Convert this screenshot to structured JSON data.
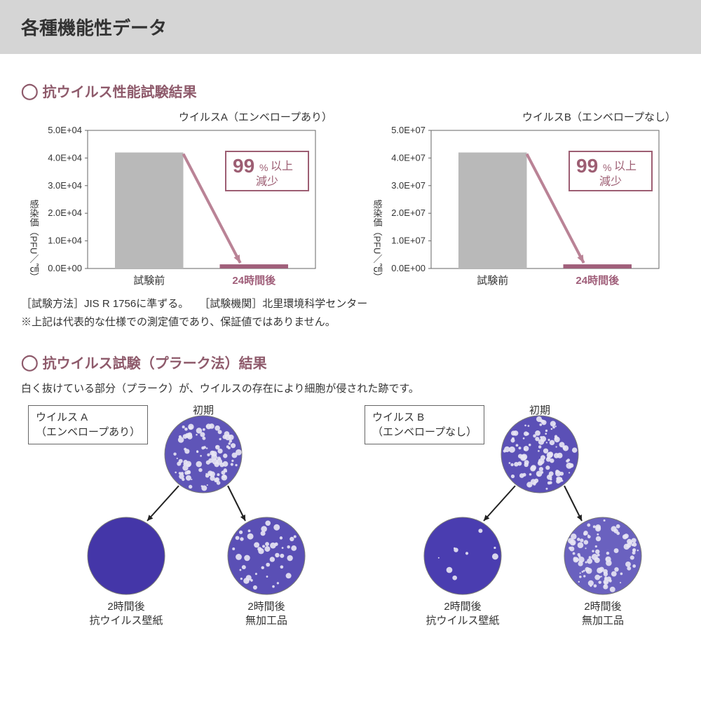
{
  "header": {
    "title": "各種機能性データ"
  },
  "section1": {
    "title": "抗ウイルス性能試験結果",
    "charts": [
      {
        "caption": "ウイルスA（エンベロープあり）",
        "ylabel": "感染価（PFU／㎠）",
        "yticks": [
          "0.0E+00",
          "1.0E+04",
          "2.0E+04",
          "3.0E+04",
          "4.0E+04",
          "5.0E+04"
        ],
        "xlabels": [
          "試験前",
          "24時間後"
        ],
        "bar1_value": 4.2,
        "bar2_value": 0.15,
        "ymax": 5.0,
        "badge_big": "99",
        "badge_pct": "%",
        "badge_rest": "以上",
        "badge_line2": "減少",
        "bar1_color": "#b9b9b9",
        "bar2_color": "#a05f7a",
        "axis_color": "#666666",
        "tick_font": 13,
        "xlabel_font": 15,
        "arrow_color": "#ba8396",
        "badge_border": "#9d5e73",
        "badge_text": "#9d5e73"
      },
      {
        "caption": "ウイルスB（エンベロープなし）",
        "ylabel": "感染価（PFU／㎠）",
        "yticks": [
          "0.0E+00",
          "1.0E+07",
          "2.0E+07",
          "3.0E+07",
          "4.0E+07",
          "5.0E+07"
        ],
        "xlabels": [
          "試験前",
          "24時間後"
        ],
        "bar1_value": 4.2,
        "bar2_value": 0.15,
        "ymax": 5.0,
        "badge_big": "99",
        "badge_pct": "%",
        "badge_rest": "以上",
        "badge_line2": "減少",
        "bar1_color": "#b9b9b9",
        "bar2_color": "#a05f7a",
        "axis_color": "#666666",
        "tick_font": 13,
        "xlabel_font": 15,
        "arrow_color": "#ba8396",
        "badge_border": "#9d5e73",
        "badge_text": "#9d5e73"
      }
    ],
    "notes": [
      "［試験方法］JIS R 1756に準ずる。　　［試験機関］北里環境科学センター",
      "※上記は代表的な仕様での測定値であり、保証値ではありません。"
    ]
  },
  "section2": {
    "title": "抗ウイルス試験（プラーク法）結果",
    "desc": "白く抜けている部分（プラーク）が、ウイルスの存在により細胞が侵された跡です。",
    "cols": [
      {
        "label_l1": "ウイルス A",
        "label_l2": "（エンベロープあり）",
        "top_label": "初期",
        "bl_label_l1": "2時間後",
        "bl_label_l2": "抗ウイルス壁紙",
        "br_label_l1": "2時間後",
        "br_label_l2": "無加工品",
        "circle_top_fill": "#5f55b8",
        "circle_top_speckle": 0.55,
        "circle_bl_fill": "#4436a8",
        "circle_bl_speckle": 0.0,
        "circle_br_fill": "#5a4fb5",
        "circle_br_speckle": 0.25
      },
      {
        "label_l1": "ウイルス B",
        "label_l2": "（エンベロープなし）",
        "top_label": "初期",
        "bl_label_l1": "2時間後",
        "bl_label_l2": "抗ウイルス壁紙",
        "br_label_l1": "2時間後",
        "br_label_l2": "無加工品",
        "circle_top_fill": "#5b50b6",
        "circle_top_speckle": 0.6,
        "circle_bl_fill": "#4a3db0",
        "circle_bl_speckle": 0.05,
        "circle_br_fill": "#6a61bf",
        "circle_br_speckle": 0.55
      }
    ]
  },
  "colors": {
    "accent": "#8e5a6b",
    "text": "#333333"
  }
}
